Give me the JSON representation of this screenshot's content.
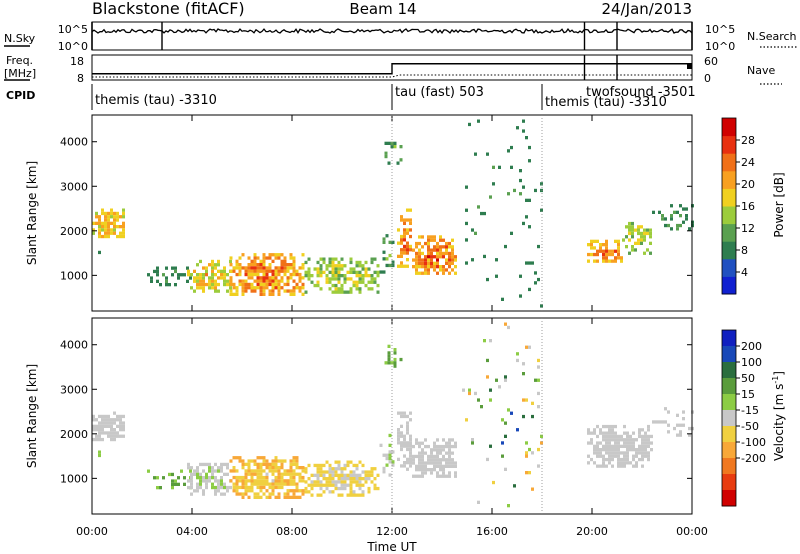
{
  "header": {
    "station": "Blackstone (fitACF)",
    "beam": "Beam 14",
    "date": "24/Jan/2013"
  },
  "noise_panel": {
    "left_label": "N.Sky",
    "right_label": "N.Search",
    "left_ticks": [
      "10^5",
      "10^0"
    ],
    "right_ticks": [
      "10^5",
      "10^0"
    ]
  },
  "freq_panel": {
    "left_label_1": "Freq.",
    "left_label_2": "[MHz]",
    "right_label": "Nave",
    "left_ticks": [
      "18",
      "8"
    ],
    "right_ticks": [
      "60",
      "0"
    ],
    "freq_steps": [
      {
        "t_start": 0.0,
        "t_end": 12.0,
        "freq": 10.5
      },
      {
        "t_start": 12.0,
        "t_end": 24.0,
        "freq": 14.5
      }
    ]
  },
  "cpid": {
    "label": "CPID",
    "entries": [
      {
        "text": "themis (tau) -3310",
        "t_start": 0.0,
        "row": 0
      },
      {
        "text": "tau (fast) 503",
        "t_start": 12.0,
        "row": 0
      },
      {
        "text": "twofsound -3501",
        "t_start": 18.0,
        "row": 0
      },
      {
        "text": "themis (tau) -3310",
        "t_start": 18.0,
        "row": 1
      }
    ],
    "markers": [
      12.0,
      18.0
    ]
  },
  "xaxis": {
    "label": "Time UT",
    "ticks": [
      "00:00",
      "04:00",
      "08:00",
      "12:00",
      "16:00",
      "20:00",
      "00:00"
    ],
    "tick_hours": [
      0,
      4,
      8,
      12,
      16,
      20,
      24
    ],
    "range": [
      0,
      24
    ]
  },
  "yaxis": {
    "label": "Slant Range [km]",
    "ticks": [
      "1000",
      "2000",
      "3000",
      "4000"
    ],
    "tick_values": [
      1000,
      2000,
      3000,
      4000
    ],
    "range": [
      200,
      4600
    ]
  },
  "power_colorbar": {
    "label": "Power [dB]",
    "ticks": [
      "4",
      "8",
      "12",
      "16",
      "20",
      "24",
      "28"
    ],
    "tick_values": [
      4,
      8,
      12,
      16,
      20,
      24,
      28
    ],
    "range": [
      0,
      32
    ]
  },
  "velocity_colorbar": {
    "label": "Velocity [m s",
    "label_sup": "-1",
    "label_end": "]",
    "ticks": [
      "200",
      "100",
      "50",
      "15",
      "-15",
      "-50",
      "-100",
      "-200"
    ]
  },
  "colors": {
    "power": [
      "#1020d0",
      "#2050c0",
      "#2e7d4f",
      "#5aa050",
      "#9ccc3c",
      "#f0d020",
      "#f8a020",
      "#f07018",
      "#e83010",
      "#d00000"
    ],
    "velocity": [
      "#1020c0",
      "#1848b8",
      "#2a6e3e",
      "#5a9c3c",
      "#8ccc44",
      "#c8c8c8",
      "#f0d040",
      "#f8a838",
      "#f07820",
      "#e83c10",
      "#d00000"
    ]
  },
  "chart_data": [
    {
      "type": "heatmap",
      "title": "Power",
      "x_units": "hours UT",
      "y_units": "km",
      "regions": [
        {
          "t": [
            0.0,
            1.3
          ],
          "r": [
            1850,
            2500
          ],
          "p": [
            12,
            24
          ],
          "density": 0.85
        },
        {
          "t": [
            0.0,
            0.25
          ],
          "r": [
            1500,
            1700
          ],
          "p": [
            4,
            12
          ],
          "density": 0.7
        },
        {
          "t": [
            2.2,
            4.0
          ],
          "r": [
            800,
            1200
          ],
          "p": [
            4,
            12
          ],
          "density": 0.35
        },
        {
          "t": [
            3.8,
            5.5
          ],
          "r": [
            650,
            1350
          ],
          "p": [
            8,
            24
          ],
          "density": 0.7
        },
        {
          "t": [
            5.5,
            8.5
          ],
          "r": [
            600,
            1500
          ],
          "p": [
            12,
            30
          ],
          "density": 0.85
        },
        {
          "t": [
            8.5,
            11.5
          ],
          "r": [
            650,
            1400
          ],
          "p": [
            8,
            20
          ],
          "density": 0.7
        },
        {
          "t": [
            11.5,
            12.1
          ],
          "r": [
            1100,
            2000
          ],
          "p": [
            4,
            16
          ],
          "density": 0.4
        },
        {
          "t": [
            12.2,
            12.8
          ],
          "r": [
            1200,
            2500
          ],
          "p": [
            12,
            28
          ],
          "density": 0.6
        },
        {
          "t": [
            12.8,
            14.6
          ],
          "r": [
            1050,
            1900
          ],
          "p": [
            12,
            30
          ],
          "density": 0.85
        },
        {
          "t": [
            11.7,
            12.4
          ],
          "r": [
            3500,
            4000
          ],
          "p": [
            4,
            16
          ],
          "density": 0.45
        },
        {
          "t": [
            19.8,
            21.2
          ],
          "r": [
            1300,
            1800
          ],
          "p": [
            12,
            28
          ],
          "density": 0.8
        },
        {
          "t": [
            21.2,
            22.4
          ],
          "r": [
            1500,
            2200
          ],
          "p": [
            8,
            20
          ],
          "density": 0.6
        },
        {
          "t": [
            22.4,
            24.0
          ],
          "r": [
            2000,
            2600
          ],
          "p": [
            4,
            12
          ],
          "density": 0.25
        },
        {
          "t": [
            14.8,
            18.0
          ],
          "r": [
            300,
            4500
          ],
          "p": [
            4,
            12
          ],
          "density": 0.05
        }
      ]
    },
    {
      "type": "heatmap",
      "title": "Velocity",
      "x_units": "hours UT",
      "y_units": "km",
      "regions": [
        {
          "t": [
            0.0,
            1.3
          ],
          "r": [
            1850,
            2500
          ],
          "v": [
            -15,
            15
          ],
          "density": 0.85
        },
        {
          "t": [
            0.0,
            0.25
          ],
          "r": [
            1500,
            1700
          ],
          "v": [
            15,
            50
          ],
          "density": 0.5
        },
        {
          "t": [
            2.2,
            4.0
          ],
          "r": [
            800,
            1200
          ],
          "v": [
            15,
            100
          ],
          "density": 0.35
        },
        {
          "t": [
            3.8,
            5.5
          ],
          "r": [
            650,
            1350
          ],
          "v": [
            -50,
            50
          ],
          "density": 0.7
        },
        {
          "t": [
            5.5,
            8.5
          ],
          "r": [
            600,
            1500
          ],
          "v": [
            -100,
            -15
          ],
          "density": 0.85
        },
        {
          "t": [
            8.5,
            11.5
          ],
          "r": [
            650,
            1400
          ],
          "v": [
            -80,
            15
          ],
          "density": 0.7
        },
        {
          "t": [
            11.5,
            12.1
          ],
          "r": [
            1100,
            2000
          ],
          "v": [
            -15,
            50
          ],
          "density": 0.4
        },
        {
          "t": [
            12.2,
            12.8
          ],
          "r": [
            1200,
            2500
          ],
          "v": [
            -15,
            15
          ],
          "density": 0.6
        },
        {
          "t": [
            12.8,
            14.6
          ],
          "r": [
            1050,
            1900
          ],
          "v": [
            -15,
            15
          ],
          "density": 0.85
        },
        {
          "t": [
            11.7,
            12.4
          ],
          "r": [
            3500,
            4000
          ],
          "v": [
            15,
            100
          ],
          "density": 0.45
        },
        {
          "t": [
            19.8,
            22.4
          ],
          "r": [
            1300,
            2200
          ],
          "v": [
            -15,
            15
          ],
          "density": 0.8
        },
        {
          "t": [
            22.4,
            24.0
          ],
          "r": [
            2000,
            2600
          ],
          "v": [
            -15,
            15
          ],
          "density": 0.25
        },
        {
          "t": [
            14.8,
            18.0
          ],
          "r": [
            300,
            4500
          ],
          "v": [
            -200,
            200
          ],
          "density": 0.05
        }
      ]
    }
  ]
}
